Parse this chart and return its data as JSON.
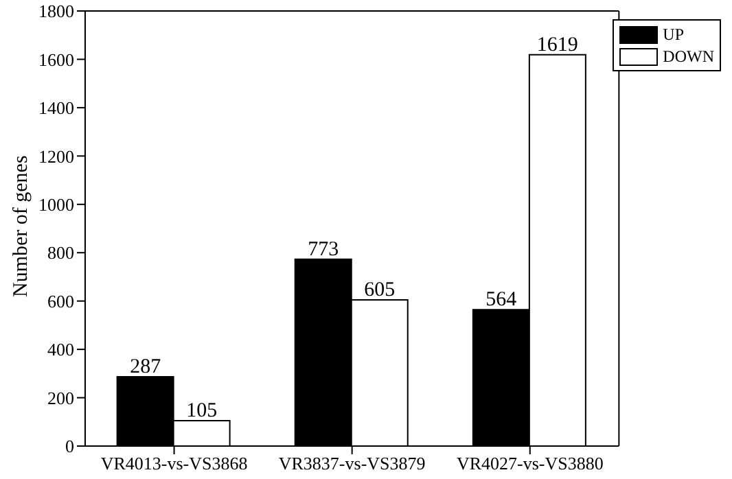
{
  "chart_data": {
    "type": "bar",
    "ylabel": "Number of genes",
    "categories": [
      "VR4013-vs-VS3868",
      "VR3837-vs-VS3879",
      "VR4027-vs-VS3880"
    ],
    "series": [
      {
        "name": "UP",
        "color": "#000000",
        "values": [
          287,
          773,
          564
        ]
      },
      {
        "name": "DOWN",
        "color": "#ffffff",
        "values": [
          105,
          605,
          1619
        ]
      }
    ],
    "ylim": [
      0,
      1800
    ],
    "yticks": [
      0,
      200,
      400,
      600,
      800,
      1000,
      1200,
      1400,
      1600,
      1800
    ],
    "data_labels": true,
    "legend": "top right",
    "grid": false
  }
}
